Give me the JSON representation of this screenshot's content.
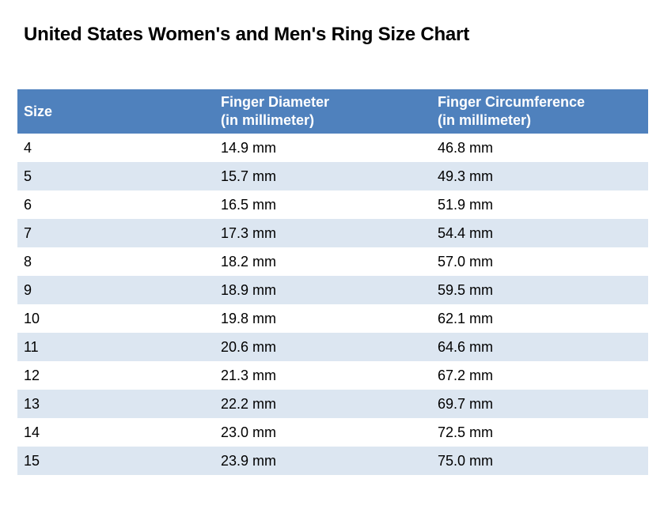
{
  "title": "United States Women's and Men's Ring Size Chart",
  "colors": {
    "header_bg": "#4F81BD",
    "header_text": "#FFFFFF",
    "alt_row_bg": "#DCE6F1"
  },
  "table": {
    "headers": [
      "Size",
      "Finger Diameter\n(in millimeter)",
      "Finger Circumference\n(in millimeter)"
    ],
    "header_lines": [
      [
        "Size"
      ],
      [
        "Finger Diameter",
        "(in millimeter)"
      ],
      [
        "Finger Circumference",
        "(in millimeter)"
      ]
    ],
    "rows": [
      [
        "4",
        "14.9 mm",
        "46.8 mm"
      ],
      [
        "5",
        "15.7 mm",
        "49.3 mm"
      ],
      [
        "6",
        "16.5 mm",
        "51.9 mm"
      ],
      [
        "7",
        "17.3 mm",
        "54.4 mm"
      ],
      [
        "8",
        "18.2 mm",
        "57.0 mm"
      ],
      [
        "9",
        "18.9 mm",
        "59.5 mm"
      ],
      [
        "10",
        "19.8 mm",
        "62.1 mm"
      ],
      [
        "11",
        "20.6 mm",
        "64.6 mm"
      ],
      [
        "12",
        "21.3 mm",
        "67.2 mm"
      ],
      [
        "13",
        "22.2 mm",
        "69.7 mm"
      ],
      [
        "14",
        "23.0 mm",
        "72.5 mm"
      ],
      [
        "15",
        "23.9 mm",
        "75.0 mm"
      ]
    ]
  }
}
